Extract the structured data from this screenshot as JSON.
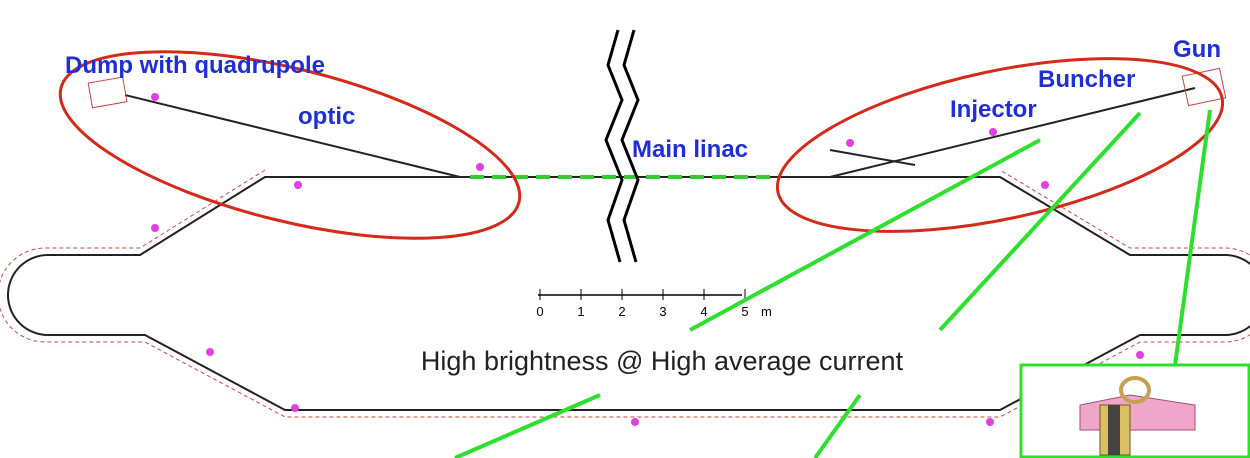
{
  "labels": {
    "dump": "Dump with quadrupole",
    "dump_optic": "optic",
    "main_linac": "Main linac",
    "injector": "Injector",
    "buncher": "Buncher",
    "gun": "Gun"
  },
  "caption": "High brightness @ High average current",
  "scale": {
    "ticks": [
      "0",
      "1",
      "2",
      "3",
      "4",
      "5"
    ],
    "unit": "m"
  }
}
